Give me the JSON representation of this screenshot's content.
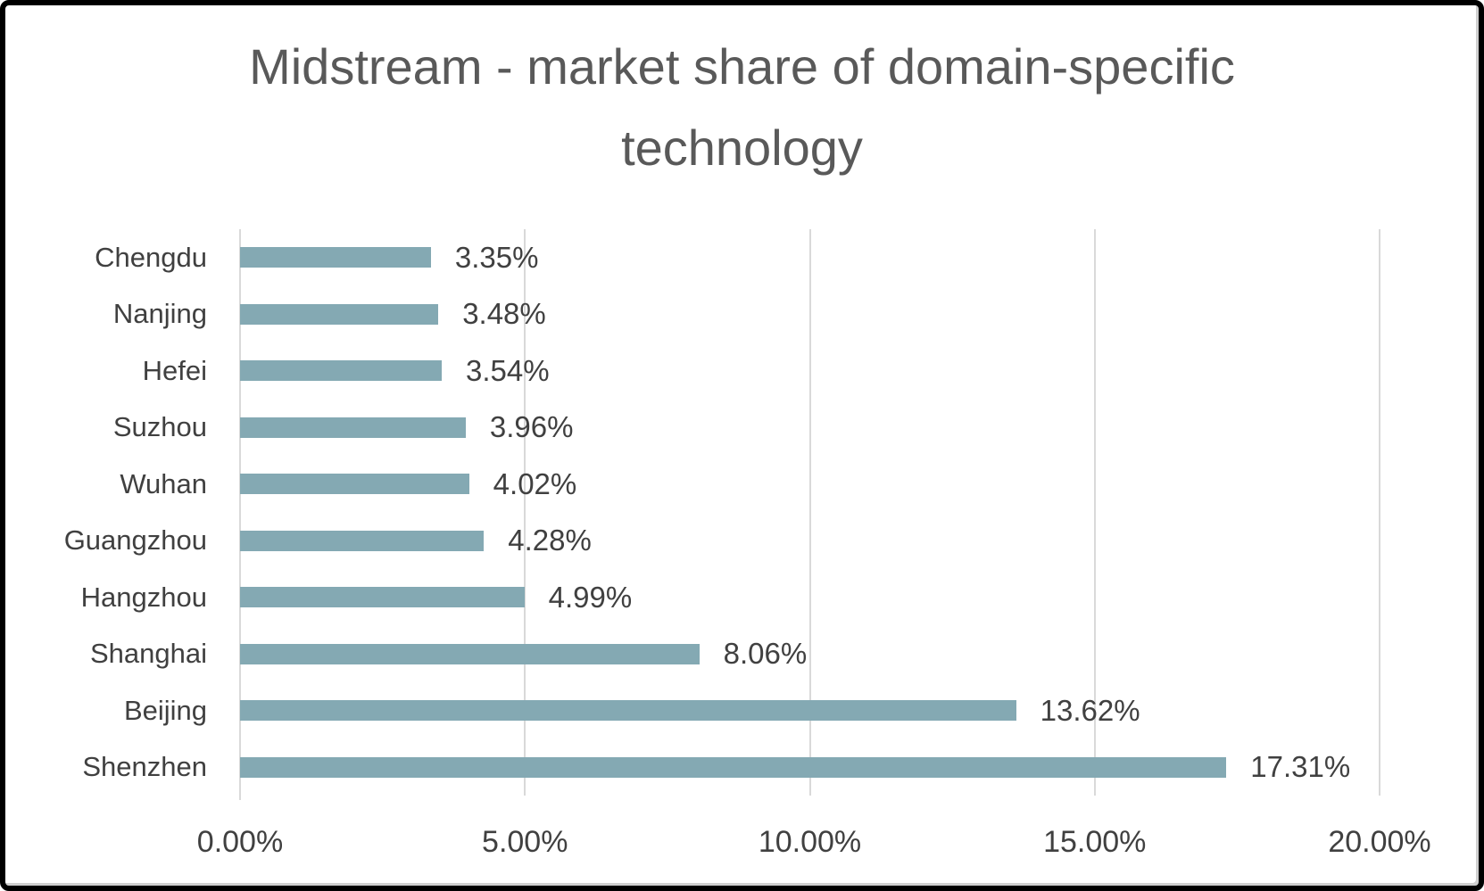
{
  "chart_data": {
    "type": "bar",
    "orientation": "horizontal",
    "title": "Midstream - market share of domain-specific technology",
    "categories": [
      "Chengdu",
      "Nanjing",
      "Hefei",
      "Suzhou",
      "Wuhan",
      "Guangzhou",
      "Hangzhou",
      "Shanghai",
      "Beijing",
      "Shenzhen"
    ],
    "values": [
      3.35,
      3.48,
      3.54,
      3.96,
      4.02,
      4.28,
      4.99,
      8.06,
      13.62,
      17.31
    ],
    "value_labels": [
      "3.35%",
      "3.48%",
      "3.54%",
      "3.96%",
      "4.02%",
      "4.28%",
      "4.99%",
      "8.06%",
      "13.62%",
      "17.31%"
    ],
    "xlabel": "",
    "ylabel": "",
    "xlim": [
      0,
      20
    ],
    "x_tick_labels": [
      "0.00%",
      "5.00%",
      "10.00%",
      "15.00%",
      "20.00%"
    ],
    "grid": "vertical",
    "legend": "none",
    "colors": {
      "bar": "#84a9b3",
      "title_text": "#595959",
      "label_text": "#404040",
      "gridline": "#d9d9d9",
      "background": "#ffffff",
      "frame_border": "#000000"
    }
  }
}
